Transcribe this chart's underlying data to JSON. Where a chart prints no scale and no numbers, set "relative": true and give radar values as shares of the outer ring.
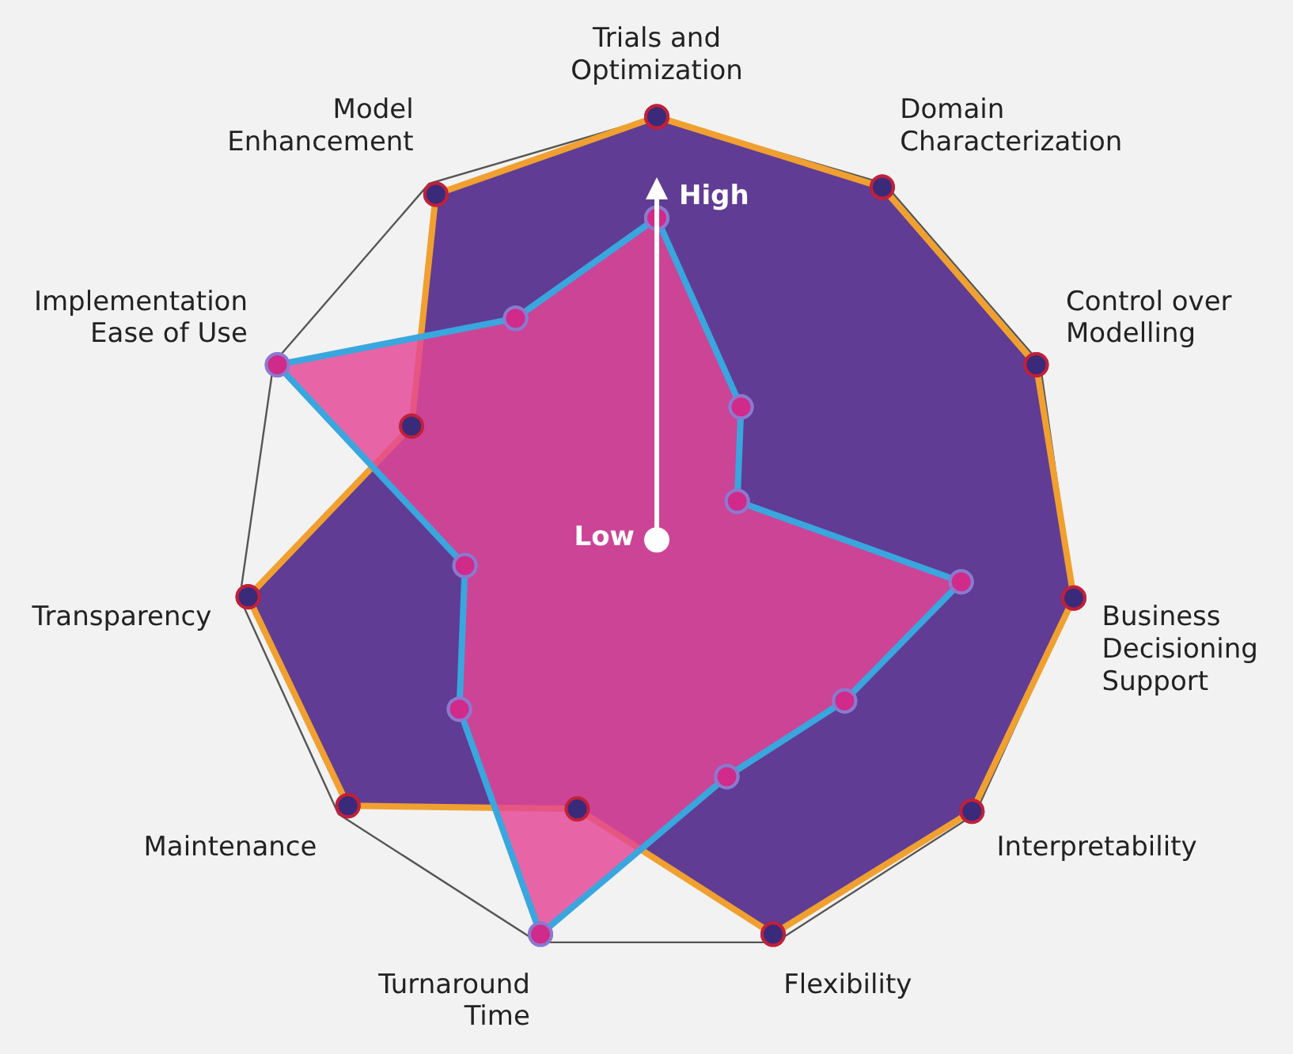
{
  "chart_data": {
    "type": "radar",
    "relative": true,
    "categories": [
      "Trials and\nOptimization",
      "Domain\nCharacterization",
      "Control over\nModelling",
      "Business\nDecisioning\nSupport",
      "Interpretability",
      "Flexibility",
      "Turnaround\nTime",
      "Maintenance",
      "Transparency",
      "Implementation\nEase of Use",
      "Model\nEnhancement"
    ],
    "series": [
      {
        "color": "#f0a030",
        "values": [
          1.0,
          0.99,
          0.99,
          1.0,
          0.99,
          0.98,
          0.67,
          0.97,
          0.98,
          0.64,
          0.97
        ]
      },
      {
        "color": "#3aa6de",
        "values": [
          0.76,
          0.37,
          0.21,
          0.73,
          0.59,
          0.59,
          0.98,
          0.62,
          0.46,
          0.99,
          0.62
        ]
      }
    ],
    "annotations": [
      "High",
      "Low"
    ],
    "grid": true,
    "legend": false,
    "marker": "circle"
  }
}
